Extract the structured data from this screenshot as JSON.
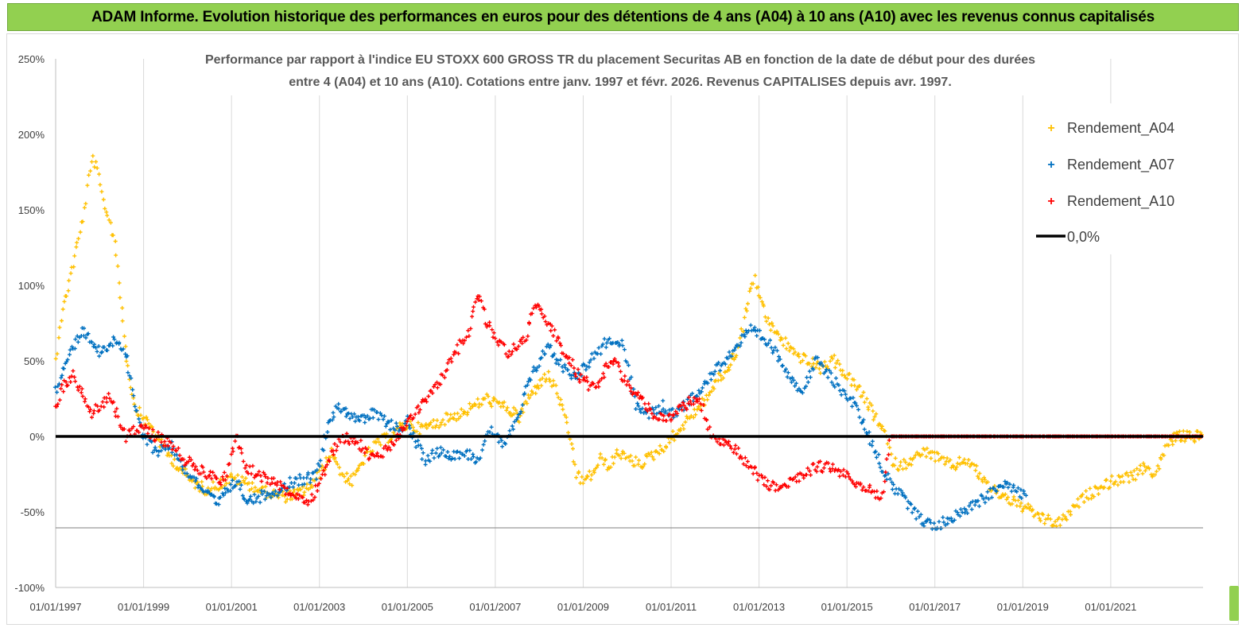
{
  "banner": {
    "title": "ADAM Informe. Evolution historique des performances en euros pour des détentions de 4 ans (A04) à 10 ans (A10) avec les revenus connus capitalisés"
  },
  "colors": {
    "banner_bg": "#92d050",
    "a04": "#ffc000",
    "a07": "#0070c0",
    "a10": "#ff0000",
    "zero_line": "#000000"
  },
  "chart_data": {
    "type": "scatter",
    "title_line1": "Performance par rapport à l'indice EU STOXX 600 GROSS TR  du placement Securitas AB en fonction de la date de début pour des durées",
    "title_line2": "entre 4 (A04) et 10 ans (A10). Cotations entre janv. 1997 et févr. 2026. Revenus CAPITALISES depuis avr. 1997.",
    "x_unit": "year",
    "xlim": [
      1997.0,
      2023.1
    ],
    "ylim": [
      -100,
      250
    ],
    "y_ticks": [
      {
        "v": 250,
        "label": "250%"
      },
      {
        "v": 200,
        "label": "200%"
      },
      {
        "v": 150,
        "label": "150%"
      },
      {
        "v": 100,
        "label": "100%"
      },
      {
        "v": 50,
        "label": "50%"
      },
      {
        "v": 0,
        "label": "0%"
      },
      {
        "v": -50,
        "label": "-50%"
      },
      {
        "v": -100,
        "label": "-100%"
      }
    ],
    "x_ticks": [
      {
        "v": 1997,
        "label": "01/01/1997"
      },
      {
        "v": 1999,
        "label": "01/01/1999"
      },
      {
        "v": 2001,
        "label": "01/01/2001"
      },
      {
        "v": 2003,
        "label": "01/01/2003"
      },
      {
        "v": 2005,
        "label": "01/01/2005"
      },
      {
        "v": 2007,
        "label": "01/01/2007"
      },
      {
        "v": 2009,
        "label": "01/01/2009"
      },
      {
        "v": 2011,
        "label": "01/01/2011"
      },
      {
        "v": 2013,
        "label": "01/01/2013"
      },
      {
        "v": 2015,
        "label": "01/01/2015"
      },
      {
        "v": 2017,
        "label": "01/01/2017"
      },
      {
        "v": 2019,
        "label": "01/01/2019"
      },
      {
        "v": 2021,
        "label": "01/01/2021"
      }
    ],
    "legend": [
      "Rendement_A04",
      "Rendement_A07",
      "Rendement_A10",
      "0,0%"
    ],
    "legend_position": "top-right",
    "series": [
      {
        "name": "Rendement_A04",
        "color": "#ffc000",
        "x": [
          1997.0,
          1997.1,
          1997.25,
          1997.4,
          1997.55,
          1997.65,
          1997.75,
          1997.85,
          1997.95,
          1998.05,
          1998.15,
          1998.25,
          1998.35,
          1998.5,
          1998.65,
          1998.8,
          1999.0,
          1999.2,
          1999.5,
          1999.8,
          2000.1,
          2000.4,
          2000.7,
          2001.0,
          2001.3,
          2001.6,
          2001.9,
          2002.2,
          2002.5,
          2002.7,
          2002.9,
          2003.1,
          2003.3,
          2003.5,
          2003.75,
          2004.0,
          2004.3,
          2004.6,
          2004.8,
          2005.0,
          2005.3,
          2005.6,
          2005.9,
          2006.2,
          2006.5,
          2006.8,
          2007.0,
          2007.3,
          2007.55,
          2007.75,
          2008.0,
          2008.2,
          2008.4,
          2008.55,
          2008.7,
          2008.85,
          2009.0,
          2009.2,
          2009.4,
          2009.6,
          2009.8,
          2010.0,
          2010.3,
          2010.6,
          2010.9,
          2011.2,
          2011.5,
          2011.8,
          2012.0,
          2012.3,
          2012.55,
          2012.75,
          2012.9,
          2013.0,
          2013.2,
          2013.5,
          2013.8,
          2014.1,
          2014.4,
          2014.7,
          2015.0,
          2015.3,
          2015.5,
          2015.7,
          2015.9,
          2016.0,
          2016.2,
          2016.5,
          2016.8,
          2017.1,
          2017.4,
          2017.7,
          2018.0,
          2018.3,
          2018.6,
          2018.9,
          2019.2,
          2019.5,
          2019.8,
          2020.1,
          2020.4,
          2020.7,
          2021.0,
          2021.3,
          2021.6,
          2021.8,
          2022.0,
          2022.15,
          2022.3,
          2022.5,
          2022.8,
          2023.1
        ],
        "y": [
          50,
          75,
          95,
          115,
          135,
          150,
          170,
          185,
          175,
          160,
          150,
          140,
          130,
          85,
          45,
          20,
          12,
          5,
          -10,
          -20,
          -30,
          -35,
          -32,
          -28,
          -30,
          -35,
          -38,
          -40,
          -38,
          -35,
          -30,
          -20,
          -10,
          -25,
          -30,
          -15,
          -5,
          0,
          5,
          8,
          5,
          8,
          12,
          15,
          20,
          25,
          22,
          18,
          12,
          25,
          35,
          40,
          30,
          15,
          0,
          -25,
          -30,
          -25,
          -15,
          -20,
          -10,
          -15,
          -18,
          -12,
          -5,
          5,
          15,
          25,
          35,
          45,
          60,
          90,
          105,
          95,
          75,
          65,
          55,
          50,
          45,
          50,
          40,
          30,
          20,
          10,
          0,
          -15,
          -20,
          -15,
          -10,
          -15,
          -20,
          -15,
          -25,
          -35,
          -40,
          -45,
          -50,
          -55,
          -58,
          -50,
          -40,
          -35,
          -30,
          -28,
          -25,
          -20,
          -25,
          -15,
          -5,
          0,
          0,
          0
        ]
      },
      {
        "name": "Rendement_A07",
        "color": "#0070c0",
        "x": [
          1997.0,
          1997.2,
          1997.4,
          1997.6,
          1997.8,
          1998.0,
          1998.2,
          1998.4,
          1998.6,
          1998.8,
          1999.0,
          1999.3,
          1999.6,
          1999.9,
          2000.2,
          2000.5,
          2000.7,
          2000.9,
          2001.1,
          2001.3,
          2001.5,
          2001.8,
          2002.1,
          2002.4,
          2002.7,
          2002.95,
          2003.2,
          2003.45,
          2003.7,
          2003.95,
          2004.2,
          2004.5,
          2004.8,
          2005.0,
          2005.2,
          2005.4,
          2005.7,
          2006.0,
          2006.3,
          2006.6,
          2006.9,
          2007.2,
          2007.5,
          2007.7,
          2007.9,
          2008.2,
          2008.4,
          2008.6,
          2008.8,
          2009.0,
          2009.3,
          2009.6,
          2009.9,
          2010.2,
          2010.5,
          2010.8,
          2011.0,
          2011.3,
          2011.6,
          2011.9,
          2012.2,
          2012.5,
          2012.8,
          2013.1,
          2013.4,
          2013.7,
          2014.0,
          2014.3,
          2014.6,
          2014.9,
          2015.2,
          2015.5,
          2015.8,
          2016.1,
          2016.4,
          2016.7,
          2017.0,
          2017.3,
          2017.6,
          2017.9,
          2018.2,
          2018.5,
          2018.8,
          2019.1
        ],
        "y": [
          30,
          45,
          60,
          70,
          65,
          55,
          60,
          65,
          55,
          20,
          0,
          -10,
          -5,
          -20,
          -30,
          -40,
          -45,
          -35,
          -30,
          -40,
          -42,
          -38,
          -35,
          -30,
          -28,
          -25,
          10,
          20,
          15,
          10,
          15,
          10,
          5,
          10,
          -5,
          -15,
          -10,
          -12,
          -10,
          -15,
          5,
          -5,
          10,
          30,
          45,
          60,
          50,
          45,
          40,
          45,
          55,
          65,
          60,
          20,
          15,
          20,
          15,
          20,
          30,
          40,
          50,
          60,
          70,
          65,
          55,
          40,
          30,
          50,
          40,
          30,
          20,
          0,
          -20,
          -35,
          -45,
          -55,
          -60,
          -55,
          -50,
          -45,
          -40,
          -30,
          -35,
          -40
        ]
      },
      {
        "name": "Rendement_A10",
        "color": "#ff0000",
        "x": [
          1997.0,
          1997.2,
          1997.4,
          1997.6,
          1997.8,
          1998.0,
          1998.2,
          1998.4,
          1998.6,
          1998.8,
          1999.0,
          1999.3,
          1999.6,
          1999.9,
          2000.2,
          2000.5,
          2000.7,
          2000.9,
          2001.1,
          2001.3,
          2001.6,
          2001.9,
          2002.2,
          2002.5,
          2002.8,
          2003.0,
          2003.3,
          2003.6,
          2003.9,
          2004.2,
          2004.5,
          2004.8,
          2005.0,
          2005.3,
          2005.6,
          2005.9,
          2006.2,
          2006.4,
          2006.6,
          2006.8,
          2007.0,
          2007.3,
          2007.5,
          2007.7,
          2007.9,
          2008.1,
          2008.3,
          2008.5,
          2008.7,
          2008.9,
          2009.1,
          2009.3,
          2009.5,
          2009.7,
          2009.9,
          2010.1,
          2010.3,
          2010.6,
          2010.9,
          2011.1,
          2011.3,
          2011.5,
          2011.7,
          2011.9,
          2012.2,
          2012.5,
          2012.8,
          2013.1,
          2013.4,
          2013.7,
          2014.0,
          2014.3,
          2014.6,
          2014.9,
          2015.2,
          2015.5,
          2015.8,
          2016.0,
          2016.5,
          2017.0,
          2017.5,
          2018.0,
          2018.5,
          2019.0,
          2019.5,
          2020.0,
          2020.5,
          2021.0,
          2021.5,
          2022.0,
          2022.5,
          2023.1
        ],
        "y": [
          20,
          35,
          40,
          30,
          15,
          20,
          25,
          15,
          0,
          5,
          5,
          0,
          -5,
          -15,
          -20,
          -25,
          -30,
          -25,
          0,
          -20,
          -25,
          -30,
          -35,
          -40,
          -42,
          -30,
          -10,
          0,
          -5,
          -15,
          -10,
          0,
          10,
          20,
          30,
          45,
          60,
          70,
          95,
          75,
          65,
          55,
          60,
          65,
          90,
          80,
          70,
          60,
          50,
          40,
          35,
          30,
          45,
          50,
          40,
          30,
          25,
          15,
          10,
          15,
          20,
          25,
          20,
          0,
          -5,
          -10,
          -20,
          -30,
          -35,
          -30,
          -25,
          -20,
          -20,
          -25,
          -30,
          -35,
          -40,
          0,
          0,
          0,
          0,
          0,
          0,
          0,
          0,
          0,
          0,
          0,
          0,
          0,
          0,
          0
        ]
      }
    ],
    "zero_line": {
      "name": "0,0%",
      "y": 0
    }
  }
}
